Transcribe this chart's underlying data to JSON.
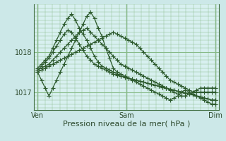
{
  "background_color": "#cce8e8",
  "plot_bg_color": "#d8f0f0",
  "grid_color": "#88bb88",
  "line_color": "#2d5a2d",
  "marker": "+",
  "markersize": 4,
  "linewidth": 0.9,
  "xlabel": "Pression niveau de la mer( hPa )",
  "xlabel_fontsize": 8,
  "yticks": [
    1017,
    1018
  ],
  "ytick_fontsize": 7,
  "xtick_labels": [
    "Ven",
    "Sam",
    "Dim"
  ],
  "xtick_positions": [
    0,
    24,
    48
  ],
  "xtick_fontsize": 7,
  "xlim": [
    -1,
    49
  ],
  "ylim": [
    1016.55,
    1019.2
  ],
  "series": [
    [
      1017.5,
      1017.55,
      1017.6,
      1017.65,
      1017.7,
      1017.75,
      1017.8,
      1017.85,
      1017.9,
      1017.95,
      1018.0,
      1018.05,
      1018.1,
      1018.15,
      1018.2,
      1018.25,
      1018.3,
      1018.35,
      1018.4,
      1018.45,
      1018.5,
      1018.45,
      1018.4,
      1018.35,
      1018.3,
      1018.25,
      1018.2,
      1018.1,
      1018.0,
      1017.9,
      1017.8,
      1017.7,
      1017.6,
      1017.5,
      1017.4,
      1017.3,
      1017.25,
      1017.2,
      1017.15,
      1017.1,
      1017.05,
      1017.0,
      1017.0,
      1017.0,
      1017.0,
      1017.0,
      1017.0,
      1017.0
    ],
    [
      1017.55,
      1017.6,
      1017.65,
      1017.7,
      1017.8,
      1017.9,
      1018.0,
      1018.1,
      1018.2,
      1018.3,
      1018.4,
      1018.5,
      1018.55,
      1018.6,
      1018.5,
      1018.4,
      1018.3,
      1018.2,
      1018.1,
      1018.0,
      1017.9,
      1017.8,
      1017.7,
      1017.65,
      1017.6,
      1017.55,
      1017.5,
      1017.45,
      1017.4,
      1017.35,
      1017.3,
      1017.25,
      1017.2,
      1017.15,
      1017.1,
      1017.05,
      1017.0,
      1016.95,
      1016.9,
      1016.9,
      1016.95,
      1017.0,
      1017.05,
      1017.1,
      1017.1,
      1017.1,
      1017.1,
      1017.1
    ],
    [
      1017.5,
      1017.3,
      1017.1,
      1016.9,
      1017.1,
      1017.3,
      1017.5,
      1017.7,
      1017.9,
      1018.1,
      1018.3,
      1018.5,
      1018.7,
      1018.9,
      1019.0,
      1018.85,
      1018.6,
      1018.4,
      1018.1,
      1017.85,
      1017.6,
      1017.5,
      1017.45,
      1017.4,
      1017.35,
      1017.3,
      1017.25,
      1017.2,
      1017.15,
      1017.1,
      1017.05,
      1017.0,
      1016.95,
      1016.9,
      1016.85,
      1016.8,
      1016.85,
      1016.9,
      1017.0,
      1017.05,
      1017.0,
      1016.95,
      1016.9,
      1016.85,
      1016.8,
      1016.75,
      1016.7,
      1016.7
    ],
    [
      1017.6,
      1017.7,
      1017.8,
      1017.9,
      1018.1,
      1018.3,
      1018.5,
      1018.7,
      1018.85,
      1018.95,
      1018.8,
      1018.6,
      1018.45,
      1018.3,
      1018.1,
      1017.9,
      1017.75,
      1017.65,
      1017.6,
      1017.55,
      1017.5,
      1017.45,
      1017.4,
      1017.38,
      1017.35,
      1017.32,
      1017.3,
      1017.27,
      1017.25,
      1017.22,
      1017.2,
      1017.17,
      1017.15,
      1017.12,
      1017.1,
      1017.07,
      1017.05,
      1017.02,
      1017.0,
      1016.98,
      1016.95,
      1016.93,
      1016.9,
      1016.88,
      1016.85,
      1016.83,
      1016.8,
      1016.8
    ],
    [
      1017.55,
      1017.65,
      1017.75,
      1017.85,
      1018.0,
      1018.15,
      1018.3,
      1018.45,
      1018.55,
      1018.5,
      1018.35,
      1018.2,
      1018.05,
      1017.9,
      1017.8,
      1017.7,
      1017.65,
      1017.6,
      1017.55,
      1017.5,
      1017.45,
      1017.42,
      1017.4,
      1017.37,
      1017.35,
      1017.32,
      1017.3,
      1017.27,
      1017.25,
      1017.22,
      1017.2,
      1017.17,
      1017.15,
      1017.12,
      1017.1,
      1017.07,
      1017.05,
      1017.02,
      1017.0,
      1016.98,
      1016.95,
      1016.93,
      1016.9,
      1016.88,
      1016.85,
      1016.83,
      1016.8,
      1016.8
    ]
  ]
}
